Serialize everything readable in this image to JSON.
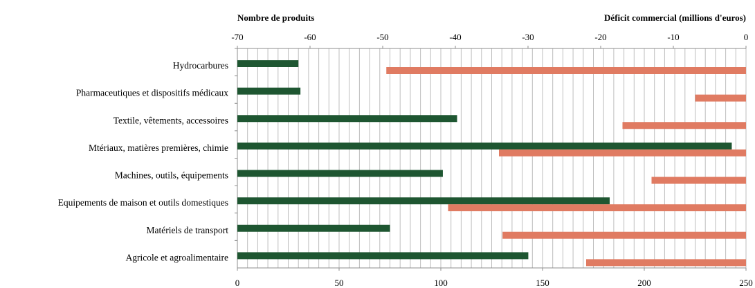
{
  "chart_data": {
    "type": "bar",
    "orientation": "horizontal",
    "categories": [
      "Hydrocarbures",
      "Pharmaceutiques et dispositifs médicaux",
      "Textile, vêtements, accessoires",
      "Mtériaux, matières premières, chimie",
      "Machines, outils, équipements",
      "Equipements de maison et outils domestiques",
      "Matériels de transport",
      "Agricole et agroalimentaire"
    ],
    "series": [
      {
        "name": "Nombre de produits",
        "axis": "bottom",
        "color": "#1e5631",
        "values": [
          30,
          31,
          108,
          243,
          101,
          183,
          75,
          143
        ]
      },
      {
        "name": "Déficit commercial (millions d'euros)",
        "axis": "top",
        "color": "#e07b62",
        "values": [
          -49.5,
          -7,
          -17,
          -34,
          -13,
          -41,
          -33.5,
          -22
        ]
      }
    ],
    "top_axis": {
      "title": "Déficit commercial (millions  d'euros)",
      "ticks": [
        "-70",
        "-60",
        "-50",
        "-40",
        "-30",
        "-20",
        "-10",
        "0"
      ],
      "range": [
        -70,
        0
      ]
    },
    "left_title": "Nombre de produits",
    "bottom_axis": {
      "ticks": [
        "0",
        "50",
        "100",
        "150",
        "200",
        "250"
      ],
      "range": [
        0,
        250
      ]
    },
    "grid": true
  }
}
